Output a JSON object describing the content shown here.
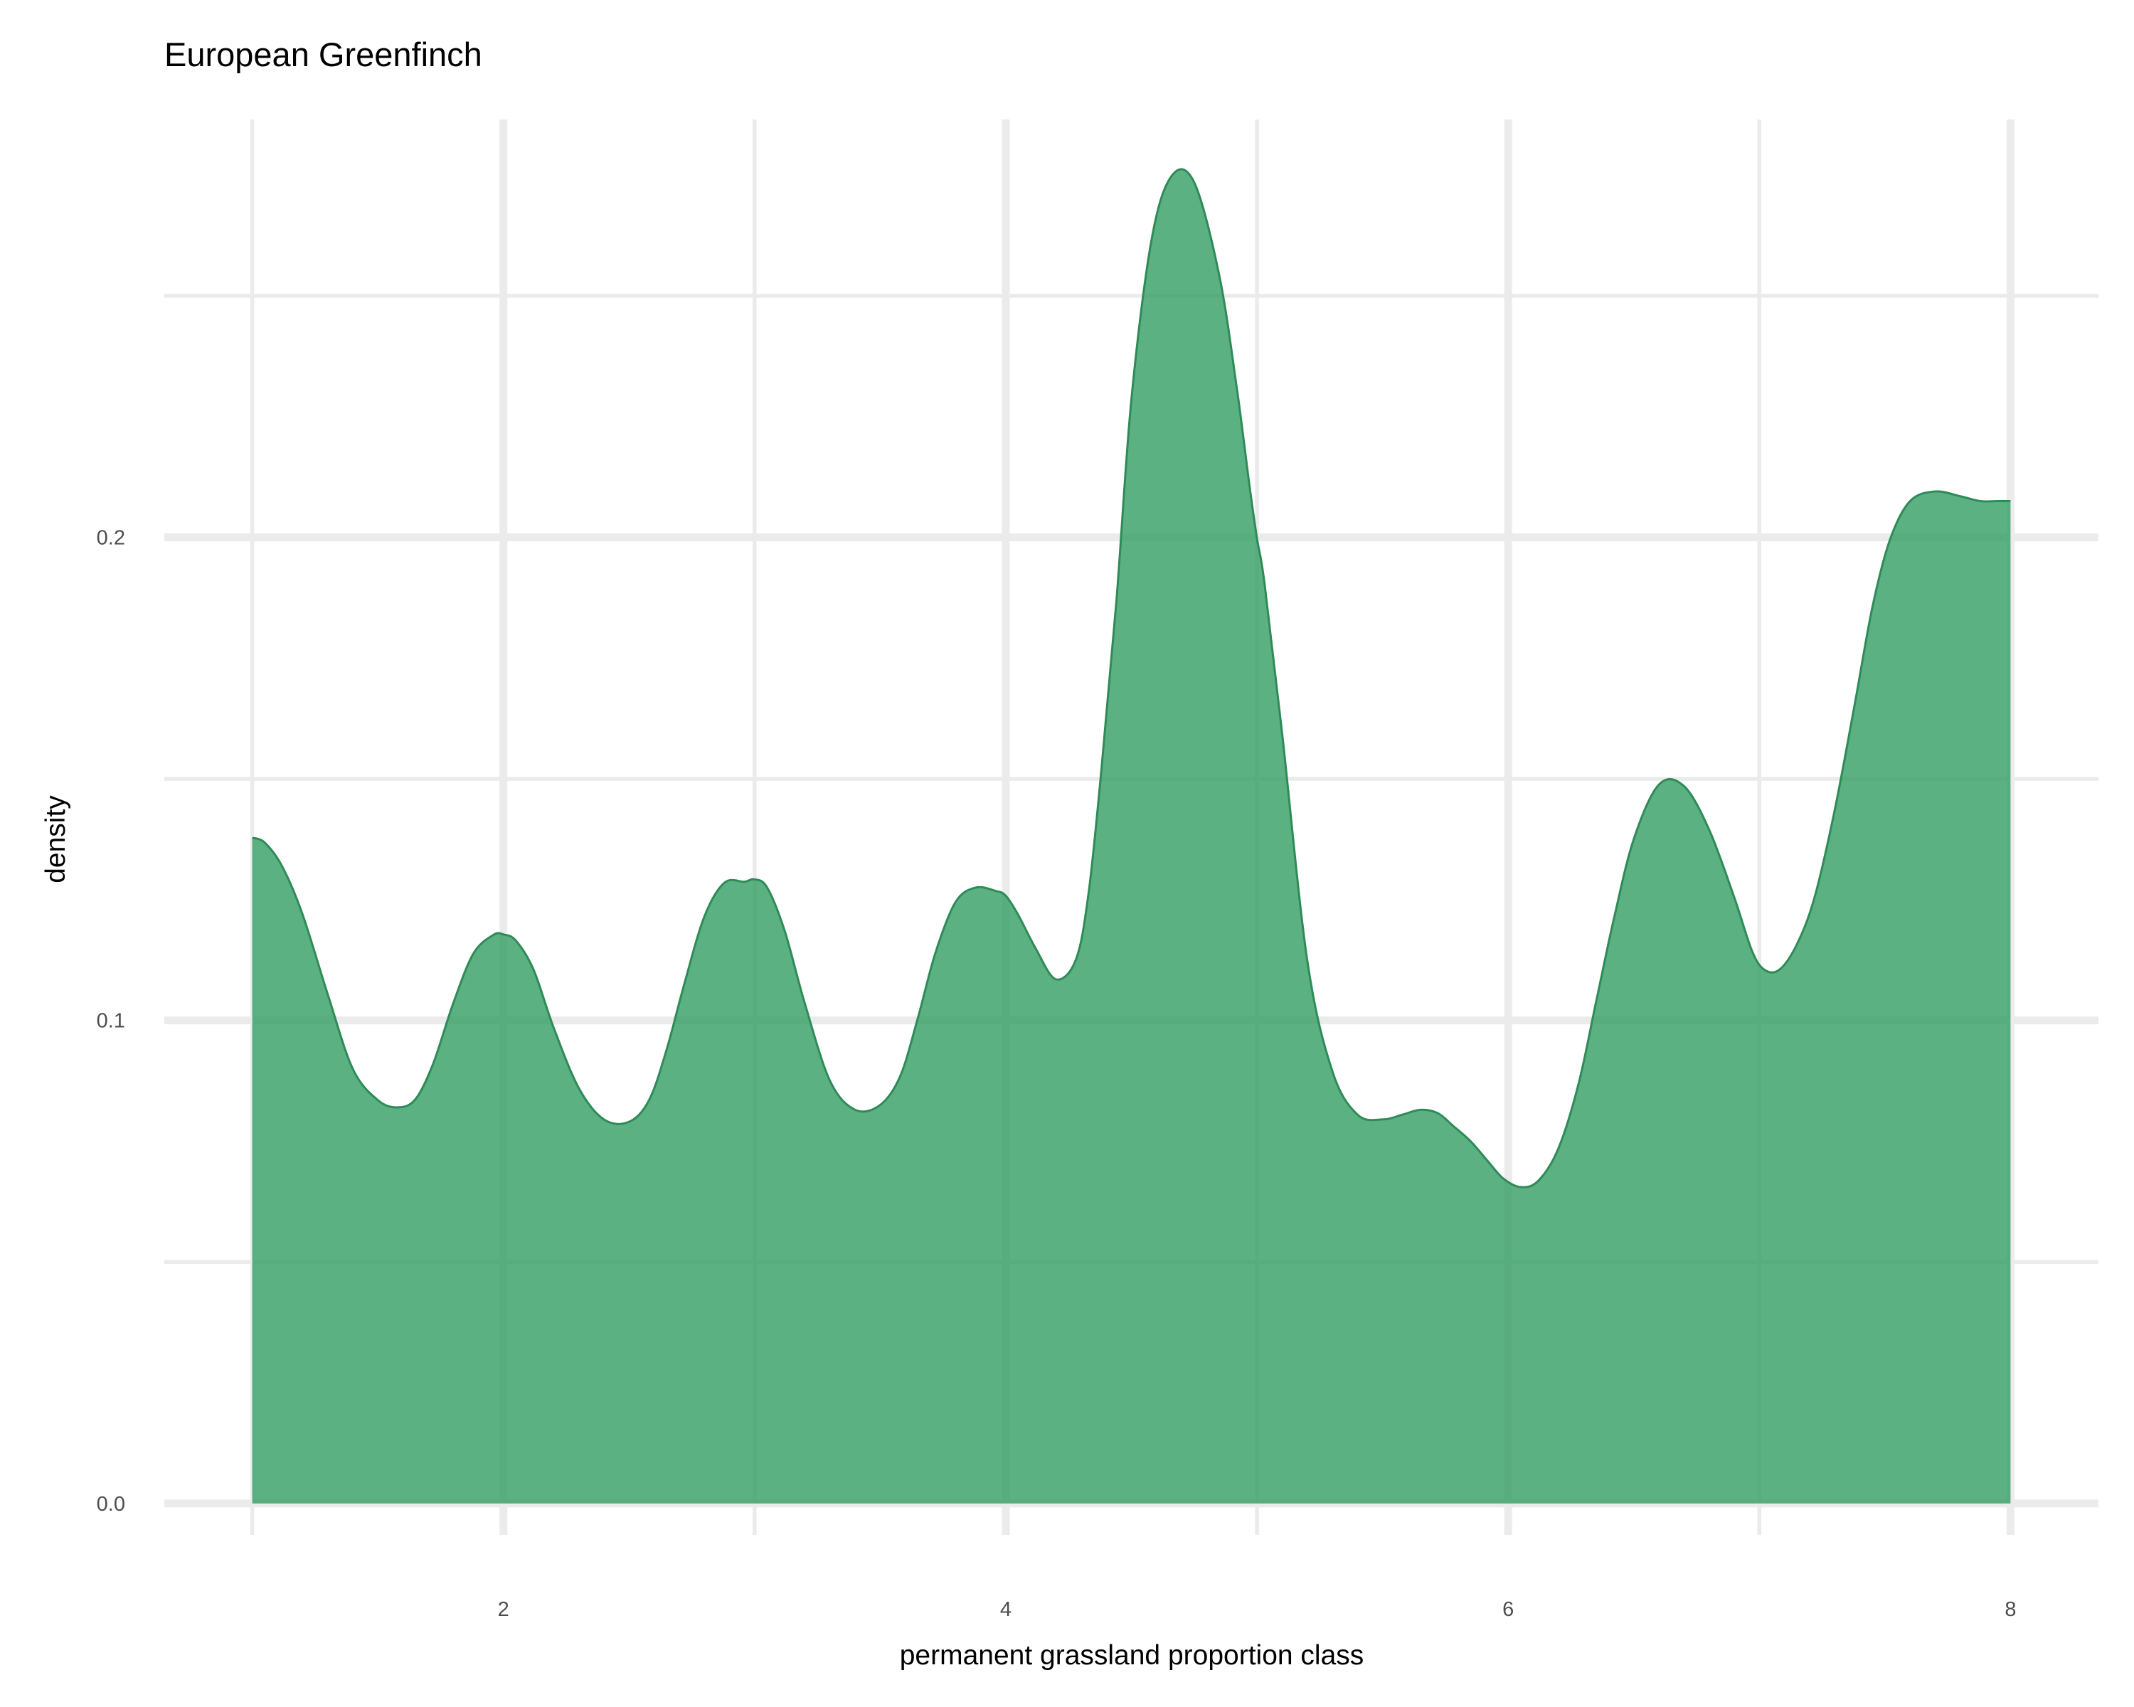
{
  "chart_data": {
    "type": "area",
    "title": "European Greenfinch",
    "xlabel": "permanent grassland proportion class",
    "ylabel": "density",
    "xlim": [
      0.65,
      8.35
    ],
    "ylim": [
      -0.0065,
      0.2865
    ],
    "x_ticks": [
      2,
      4,
      6,
      8
    ],
    "x_tick_labels": [
      "2",
      "4",
      "6",
      "8"
    ],
    "x_minor_grid": [
      1,
      3,
      5,
      7
    ],
    "y_ticks": [
      0.0,
      0.1,
      0.2
    ],
    "y_tick_labels": [
      "0.0",
      "0.1",
      "0.2"
    ],
    "y_minor_grid": [
      0.05,
      0.15,
      0.25
    ],
    "grid": true,
    "legend": "none",
    "fill_color": "#2E9B5F",
    "fill_opacity": 0.78,
    "line_color": "#2E8B57",
    "series": [
      {
        "x": [
          1.0,
          1.05,
          1.12,
          1.2,
          1.3,
          1.4,
          1.5,
          1.58,
          1.65,
          1.72,
          1.8,
          1.88,
          1.96,
          2.0,
          2.05,
          2.12,
          2.2,
          2.3,
          2.4,
          2.5,
          2.58,
          2.65,
          2.72,
          2.8,
          2.88,
          2.96,
          3.0,
          3.05,
          3.12,
          3.2,
          3.3,
          3.4,
          3.5,
          3.58,
          3.65,
          3.72,
          3.8,
          3.88,
          3.96,
          4.0,
          4.05,
          4.12,
          4.2,
          4.28,
          4.33,
          4.38,
          4.44,
          4.5,
          4.58,
          4.66,
          4.75,
          4.85,
          4.92,
          4.97,
          5.0,
          5.03,
          5.1,
          5.2,
          5.3,
          5.4,
          5.5,
          5.58,
          5.65,
          5.72,
          5.78,
          5.85,
          5.92,
          5.98,
          6.05,
          6.12,
          6.2,
          6.28,
          6.35,
          6.42,
          6.5,
          6.6,
          6.7,
          6.8,
          6.9,
          6.97,
          7.02,
          7.08,
          7.15,
          7.22,
          7.3,
          7.38,
          7.45,
          7.52,
          7.6,
          7.7,
          7.8,
          7.88,
          7.95,
          8.0
        ],
        "y": [
          0.1378,
          0.1368,
          0.1318,
          0.122,
          0.1055,
          0.09,
          0.0835,
          0.082,
          0.0837,
          0.091,
          0.1035,
          0.1138,
          0.1177,
          0.1178,
          0.1165,
          0.1105,
          0.0985,
          0.086,
          0.0795,
          0.079,
          0.0835,
          0.094,
          0.1075,
          0.1215,
          0.1285,
          0.1287,
          0.1292,
          0.1275,
          0.1185,
          0.1035,
          0.0875,
          0.0815,
          0.0825,
          0.0885,
          0.1005,
          0.114,
          0.1245,
          0.1275,
          0.1268,
          0.1258,
          0.1218,
          0.1148,
          0.1085,
          0.1127,
          0.1265,
          0.1515,
          0.1865,
          0.2285,
          0.2615,
          0.2748,
          0.2735,
          0.2542,
          0.2308,
          0.2108,
          0.1998,
          0.1905,
          0.1595,
          0.1125,
          0.0895,
          0.0805,
          0.0795,
          0.0805,
          0.0815,
          0.0808,
          0.0782,
          0.075,
          0.0708,
          0.0673,
          0.0655,
          0.0668,
          0.0735,
          0.0868,
          0.1038,
          0.1208,
          0.1375,
          0.1488,
          0.1485,
          0.1395,
          0.1255,
          0.1145,
          0.1105,
          0.1105,
          0.1158,
          0.1255,
          0.1435,
          0.1655,
          0.1855,
          0.1995,
          0.2075,
          0.2095,
          0.2085,
          0.2075,
          0.2075,
          0.2075
        ]
      }
    ]
  }
}
